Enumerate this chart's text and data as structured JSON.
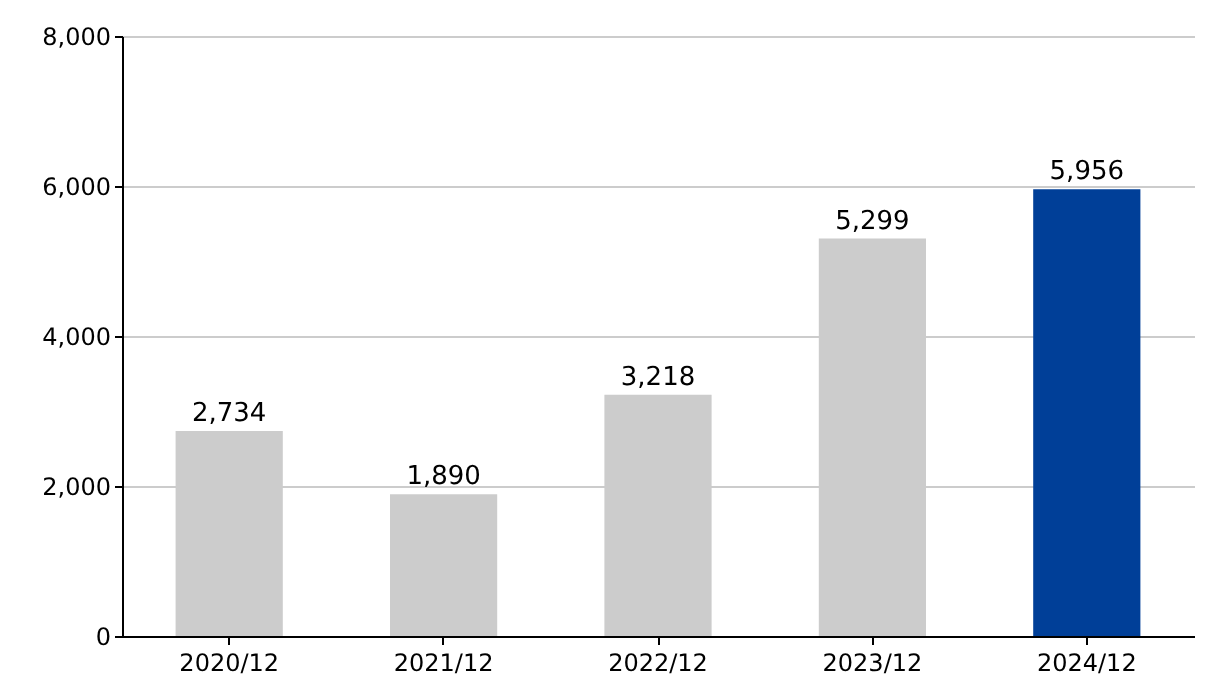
{
  "chart_data": {
    "type": "bar",
    "categories": [
      "2020/12",
      "2021/12",
      "2022/12",
      "2023/12",
      "2024/12"
    ],
    "values": [
      2734,
      1890,
      3218,
      5299,
      5956
    ],
    "colors": [
      "#cccccc",
      "#cccccc",
      "#cccccc",
      "#cccccc",
      "#003f98"
    ],
    "ylim": [
      0,
      8000
    ],
    "yticks": [
      0,
      {
        "value": 2000,
        "label": "2,000"
      },
      {
        "value": 4000,
        "label": "4,000"
      },
      {
        "value": 6000,
        "label": "6,000"
      },
      {
        "value": 8000,
        "label": "8,000"
      }
    ],
    "value_labels": [
      "2,734",
      "1,890",
      "3,218",
      "5,299",
      "5,956"
    ],
    "grid": "y"
  }
}
